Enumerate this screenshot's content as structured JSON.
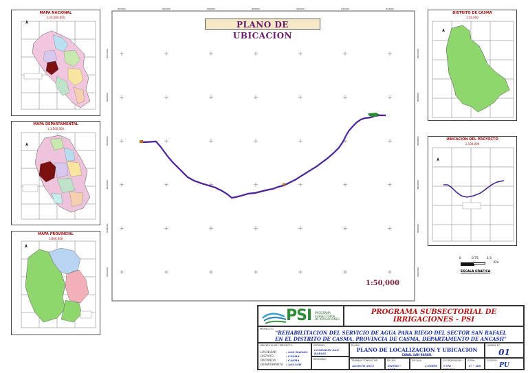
{
  "main_map": {
    "title": "PLANO DE UBICACION",
    "scale": "1:50,000",
    "x_ticks": [
      "802000",
      "804000",
      "806000",
      "808000",
      "810000",
      "812000",
      "814000"
    ],
    "y_ticks": [
      "8952000",
      "8950000",
      "8948000",
      "8946000",
      "8944000",
      "8942000"
    ]
  },
  "insets": {
    "nacional": {
      "title": "MAPA NACIONAL",
      "scale": "1:20,000,000"
    },
    "departamental": {
      "title": "MAPA DEPARTAMENTAL",
      "scale": "1:3,500,000"
    },
    "provincial": {
      "title": "MAPA PROVINCIAL",
      "scale": "1:800,000"
    },
    "distrito": {
      "title": "DISTRITO DE CASMA",
      "scale": "1:50,000"
    },
    "ubicacion": {
      "title": "UBICACION DEL PROYECTO",
      "scale": "1:100,000"
    }
  },
  "graphic_scale": {
    "labels": [
      "0",
      "0.75",
      "1.5"
    ],
    "unit": "Km",
    "caption": "ESCALA GRAFICA"
  },
  "title_block": {
    "program_line1": "PROGRAMA SUBSECTORIAL DE",
    "program_line2": "IRRIGACIONES - PSI",
    "logo_text": "PSI",
    "logo_sub1": "PROGRAMA",
    "logo_sub2": "SUBSECTORIAL",
    "logo_sub3": "DE IRRIGACIONES",
    "proyecto_label": "PROYECTO:",
    "proyecto_line1": "\"REHABILITACION DEL SERVICIO DE AGUA PARA RIEGO DEL SECTOR SAN RAFAEL",
    "proyecto_line2": "EN EL DISTRITO DE CASMA, PROVINCIA DE CASMA, DEPARTAMENTO DE ANCASH\"",
    "ubicacion_label": "UBICACION DEL PROYECTO",
    "localidad_label": "LOCALIDAD",
    "localidad": ": SAN RAFAEL",
    "distrito_label": "DISTRITO",
    "distrito": ": CASMA",
    "provincia_label": "PROVINCIA",
    "provincia": ": CASMA",
    "departamento_label": "DEPARTAMENTO",
    "departamento": ": ANCASH",
    "entidad_label": "ENTIDAD:",
    "entidad": "COMISION SAN RAFAEL",
    "revisado_label": "REVISADO:",
    "plano_label": "PLANO:",
    "plano_title": "PLANO DE LOCALIZACION Y UBICACION",
    "plano_sub": "CANAL SAN RAFAEL",
    "lamina_label": "LAMINA N°",
    "lamina": "01",
    "f1_label": "TRABAJO CONSULTOR",
    "f1": "AGOSTO 2015",
    "f2_label": "FECHA:",
    "f2": "ENERO - 2015",
    "f3_label": "ESCALA:",
    "f3": "1:50000",
    "f4_label": "COORDENADAS:",
    "f4": "UTM - WGS84",
    "f5_label": "ZONA:",
    "f5": "17 - 18S",
    "f6_label": "CODIGO:",
    "f6": "PU"
  }
}
